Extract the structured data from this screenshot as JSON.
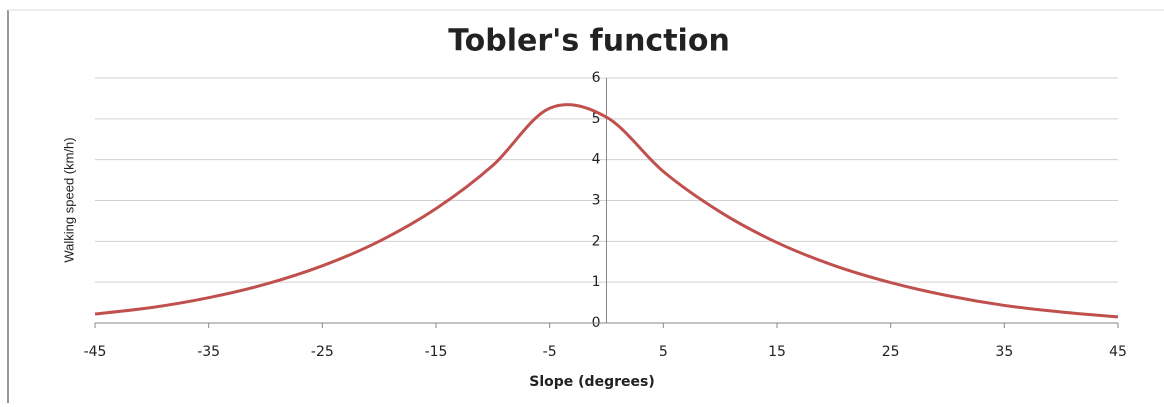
{
  "chart_data": {
    "type": "line",
    "title": "Tobler's function",
    "x_label": "Slope (degrees)",
    "y_label": "Walking speed (km/h)",
    "x": [
      -45,
      -40,
      -35,
      -30,
      -25,
      -20,
      -15,
      -10,
      -5,
      0,
      5,
      10,
      15,
      20,
      25,
      30,
      35,
      40,
      45
    ],
    "series": [
      {
        "name": "Walking speed",
        "color": "#c0504d",
        "values": [
          0.22,
          0.38,
          0.62,
          0.95,
          1.4,
          2.0,
          2.8,
          3.86,
          5.26,
          5.04,
          3.71,
          2.72,
          1.97,
          1.41,
          0.99,
          0.67,
          0.43,
          0.27,
          0.15
        ]
      }
    ],
    "xlim": [
      -45,
      45
    ],
    "xticks": [
      -45,
      -35,
      -25,
      -15,
      -5,
      5,
      15,
      25,
      35,
      45
    ],
    "ylim": [
      0,
      6
    ],
    "yticks": [
      0,
      1,
      2,
      3,
      4,
      5,
      6
    ],
    "grid": true
  }
}
